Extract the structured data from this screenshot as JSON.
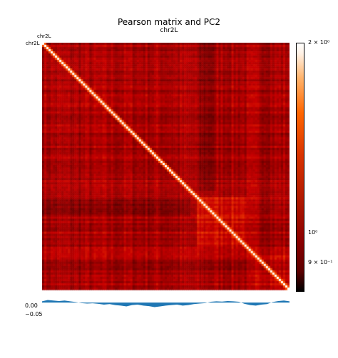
{
  "chart_data": [
    {
      "type": "heatmap",
      "title": "Pearson matrix and PC2",
      "subtitle": "chr2L",
      "x_tick_label": "chr2L",
      "y_tick_label": "chr2L",
      "colorbar": {
        "scale": "log",
        "ticks": [
          "2 × 10⁰",
          "10⁰",
          "9 × 10⁻¹"
        ],
        "colors": [
          "#000000",
          "#8a0000",
          "#d93300",
          "#ff6600",
          "#ffffff"
        ]
      }
    },
    {
      "type": "area",
      "yticks": [
        "0.00",
        "−0.05"
      ],
      "ylim": [
        -0.07,
        0.02
      ],
      "color": "#1f77b4",
      "values": [
        0.005,
        0.01,
        0.008,
        0.006,
        0.008,
        0.005,
        0.002,
        -0.002,
        -0.004,
        -0.003,
        -0.005,
        -0.008,
        -0.006,
        -0.01,
        -0.012,
        -0.015,
        -0.01,
        -0.008,
        -0.012,
        -0.014,
        -0.018,
        -0.015,
        -0.012,
        -0.01,
        -0.008,
        -0.012,
        -0.01,
        -0.006,
        -0.004,
        -0.002,
        0.003,
        0.005,
        0.004,
        0.006,
        0.005,
        0.003,
        -0.005,
        -0.01,
        -0.012,
        -0.008,
        -0.006,
        0.002,
        0.006,
        0.008,
        0.005
      ]
    }
  ]
}
